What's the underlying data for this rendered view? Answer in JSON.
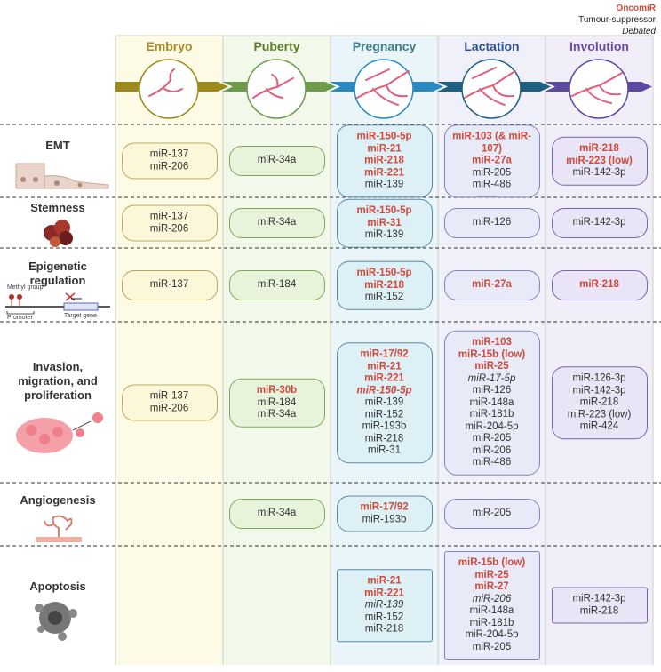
{
  "legend": {
    "oncomir": "OncomiR",
    "suppressor": "Tumour-suppressor",
    "debated": "Debated"
  },
  "stages": [
    "Embryo",
    "Puberty",
    "Pregnancy",
    "Lactation",
    "Involution"
  ],
  "icon_labels": {
    "methyl": "Methyl group",
    "promoter": "Promoter",
    "target": "Target gene"
  },
  "rows": [
    {
      "label": "EMT",
      "cells": [
        {
          "items": [
            {
              "text": "miR-137",
              "type": "suppressor"
            },
            {
              "text": "miR-206",
              "type": "suppressor"
            }
          ]
        },
        {
          "items": [
            {
              "text": "miR-34a",
              "type": "suppressor"
            }
          ]
        },
        {
          "items": [
            {
              "text": "miR-150-5p",
              "type": "oncomir"
            },
            {
              "text": "miR-21",
              "type": "oncomir"
            },
            {
              "text": "miR-218",
              "type": "oncomir"
            },
            {
              "text": "miR-221",
              "type": "oncomir"
            },
            {
              "text": "miR-139",
              "type": "suppressor"
            }
          ]
        },
        {
          "items": [
            {
              "text": "miR-103 (& miR-107)",
              "type": "oncomir"
            },
            {
              "text": "miR-27a",
              "type": "oncomir"
            },
            {
              "text": "miR-205",
              "type": "suppressor"
            },
            {
              "text": "miR-486",
              "type": "suppressor"
            }
          ]
        },
        {
          "items": [
            {
              "text": "miR-218",
              "type": "oncomir"
            },
            {
              "text": "miR-223 (low)",
              "type": "oncomir"
            },
            {
              "text": "miR-142-3p",
              "type": "suppressor"
            }
          ]
        }
      ]
    },
    {
      "label": "Stemness",
      "cells": [
        {
          "items": [
            {
              "text": "miR-137",
              "type": "suppressor"
            },
            {
              "text": "miR-206",
              "type": "suppressor"
            }
          ]
        },
        {
          "items": [
            {
              "text": "miR-34a",
              "type": "suppressor"
            }
          ]
        },
        {
          "items": [
            {
              "text": "miR-150-5p",
              "type": "oncomir"
            },
            {
              "text": "miR-31",
              "type": "oncomir"
            },
            {
              "text": "miR-139",
              "type": "suppressor"
            }
          ]
        },
        {
          "items": [
            {
              "text": "miR-126",
              "type": "suppressor"
            }
          ]
        },
        {
          "items": [
            {
              "text": "miR-142-3p",
              "type": "suppressor"
            }
          ]
        }
      ]
    },
    {
      "label": "Epigenetic regulation",
      "cells": [
        {
          "items": [
            {
              "text": "miR-137",
              "type": "suppressor"
            }
          ]
        },
        {
          "items": [
            {
              "text": "miR-184",
              "type": "suppressor"
            }
          ]
        },
        {
          "items": [
            {
              "text": "miR-150-5p",
              "type": "oncomir"
            },
            {
              "text": "miR-218",
              "type": "oncomir"
            },
            {
              "text": "miR-152",
              "type": "suppressor"
            }
          ]
        },
        {
          "items": [
            {
              "text": "miR-27a",
              "type": "oncomir"
            }
          ]
        },
        {
          "items": [
            {
              "text": "miR-218",
              "type": "oncomir"
            }
          ]
        }
      ]
    },
    {
      "label": "Invasion, migration, and proliferation",
      "cells": [
        {
          "items": [
            {
              "text": "miR-137",
              "type": "suppressor"
            },
            {
              "text": "miR-206",
              "type": "suppressor"
            }
          ]
        },
        {
          "items": [
            {
              "text": "miR-30b",
              "type": "oncomir"
            },
            {
              "text": "miR-184",
              "type": "suppressor"
            },
            {
              "text": "miR-34a",
              "type": "suppressor"
            }
          ]
        },
        {
          "items": [
            {
              "text": "miR-17/92",
              "type": "oncomir"
            },
            {
              "text": "miR-21",
              "type": "oncomir"
            },
            {
              "text": "miR-221",
              "type": "oncomir"
            },
            {
              "text": "miR-150-5p",
              "type": "oncomir-debated"
            },
            {
              "text": "miR-139",
              "type": "suppressor"
            },
            {
              "text": "miR-152",
              "type": "suppressor"
            },
            {
              "text": "miR-193b",
              "type": "suppressor"
            },
            {
              "text": "miR-218",
              "type": "suppressor"
            },
            {
              "text": "miR-31",
              "type": "suppressor"
            }
          ]
        },
        {
          "items": [
            {
              "text": "miR-103",
              "type": "oncomir"
            },
            {
              "text": "miR-15b (low)",
              "type": "oncomir"
            },
            {
              "text": "miR-25",
              "type": "oncomir"
            },
            {
              "text": "miR-17-5p",
              "type": "debated"
            },
            {
              "text": "miR-126",
              "type": "suppressor"
            },
            {
              "text": "miR-148a",
              "type": "suppressor"
            },
            {
              "text": "miR-181b",
              "type": "suppressor"
            },
            {
              "text": "miR-204-5p",
              "type": "suppressor"
            },
            {
              "text": "miR-205",
              "type": "suppressor"
            },
            {
              "text": "miR-206",
              "type": "suppressor"
            },
            {
              "text": "miR-486",
              "type": "suppressor"
            }
          ]
        },
        {
          "items": [
            {
              "text": "miR-126-3p",
              "type": "suppressor"
            },
            {
              "text": "miR-142-3p",
              "type": "suppressor"
            },
            {
              "text": "miR-218",
              "type": "suppressor"
            },
            {
              "text": "miR-223 (low)",
              "type": "suppressor"
            },
            {
              "text": "miR-424",
              "type": "suppressor"
            }
          ]
        }
      ]
    },
    {
      "label": "Angiogenesis",
      "cells": [
        null,
        {
          "items": [
            {
              "text": "miR-34a",
              "type": "suppressor"
            }
          ]
        },
        {
          "items": [
            {
              "text": "miR-17/92",
              "type": "oncomir"
            },
            {
              "text": "miR-193b",
              "type": "suppressor"
            }
          ]
        },
        {
          "items": [
            {
              "text": "miR-205",
              "type": "suppressor"
            }
          ]
        },
        null
      ]
    },
    {
      "label": "Apoptosis",
      "cells": [
        null,
        null,
        {
          "items": [
            {
              "text": "miR-21",
              "type": "oncomir"
            },
            {
              "text": "miR-221",
              "type": "oncomir"
            },
            {
              "text": "miR-139",
              "type": "debated"
            },
            {
              "text": "miR-152",
              "type": "suppressor"
            },
            {
              "text": "miR-218",
              "type": "suppressor"
            }
          ]
        },
        {
          "items": [
            {
              "text": "miR-15b (low)",
              "type": "oncomir"
            },
            {
              "text": "miR-25",
              "type": "oncomir"
            },
            {
              "text": "miR-27",
              "type": "oncomir"
            },
            {
              "text": "miR-206",
              "type": "debated"
            },
            {
              "text": "miR-148a",
              "type": "suppressor"
            },
            {
              "text": "miR-181b",
              "type": "suppressor"
            },
            {
              "text": "miR-204-5p",
              "type": "suppressor"
            },
            {
              "text": "miR-205",
              "type": "suppressor"
            }
          ]
        },
        {
          "items": [
            {
              "text": "miR-142-3p",
              "type": "suppressor"
            },
            {
              "text": "miR-218",
              "type": "suppressor"
            }
          ]
        }
      ]
    }
  ]
}
